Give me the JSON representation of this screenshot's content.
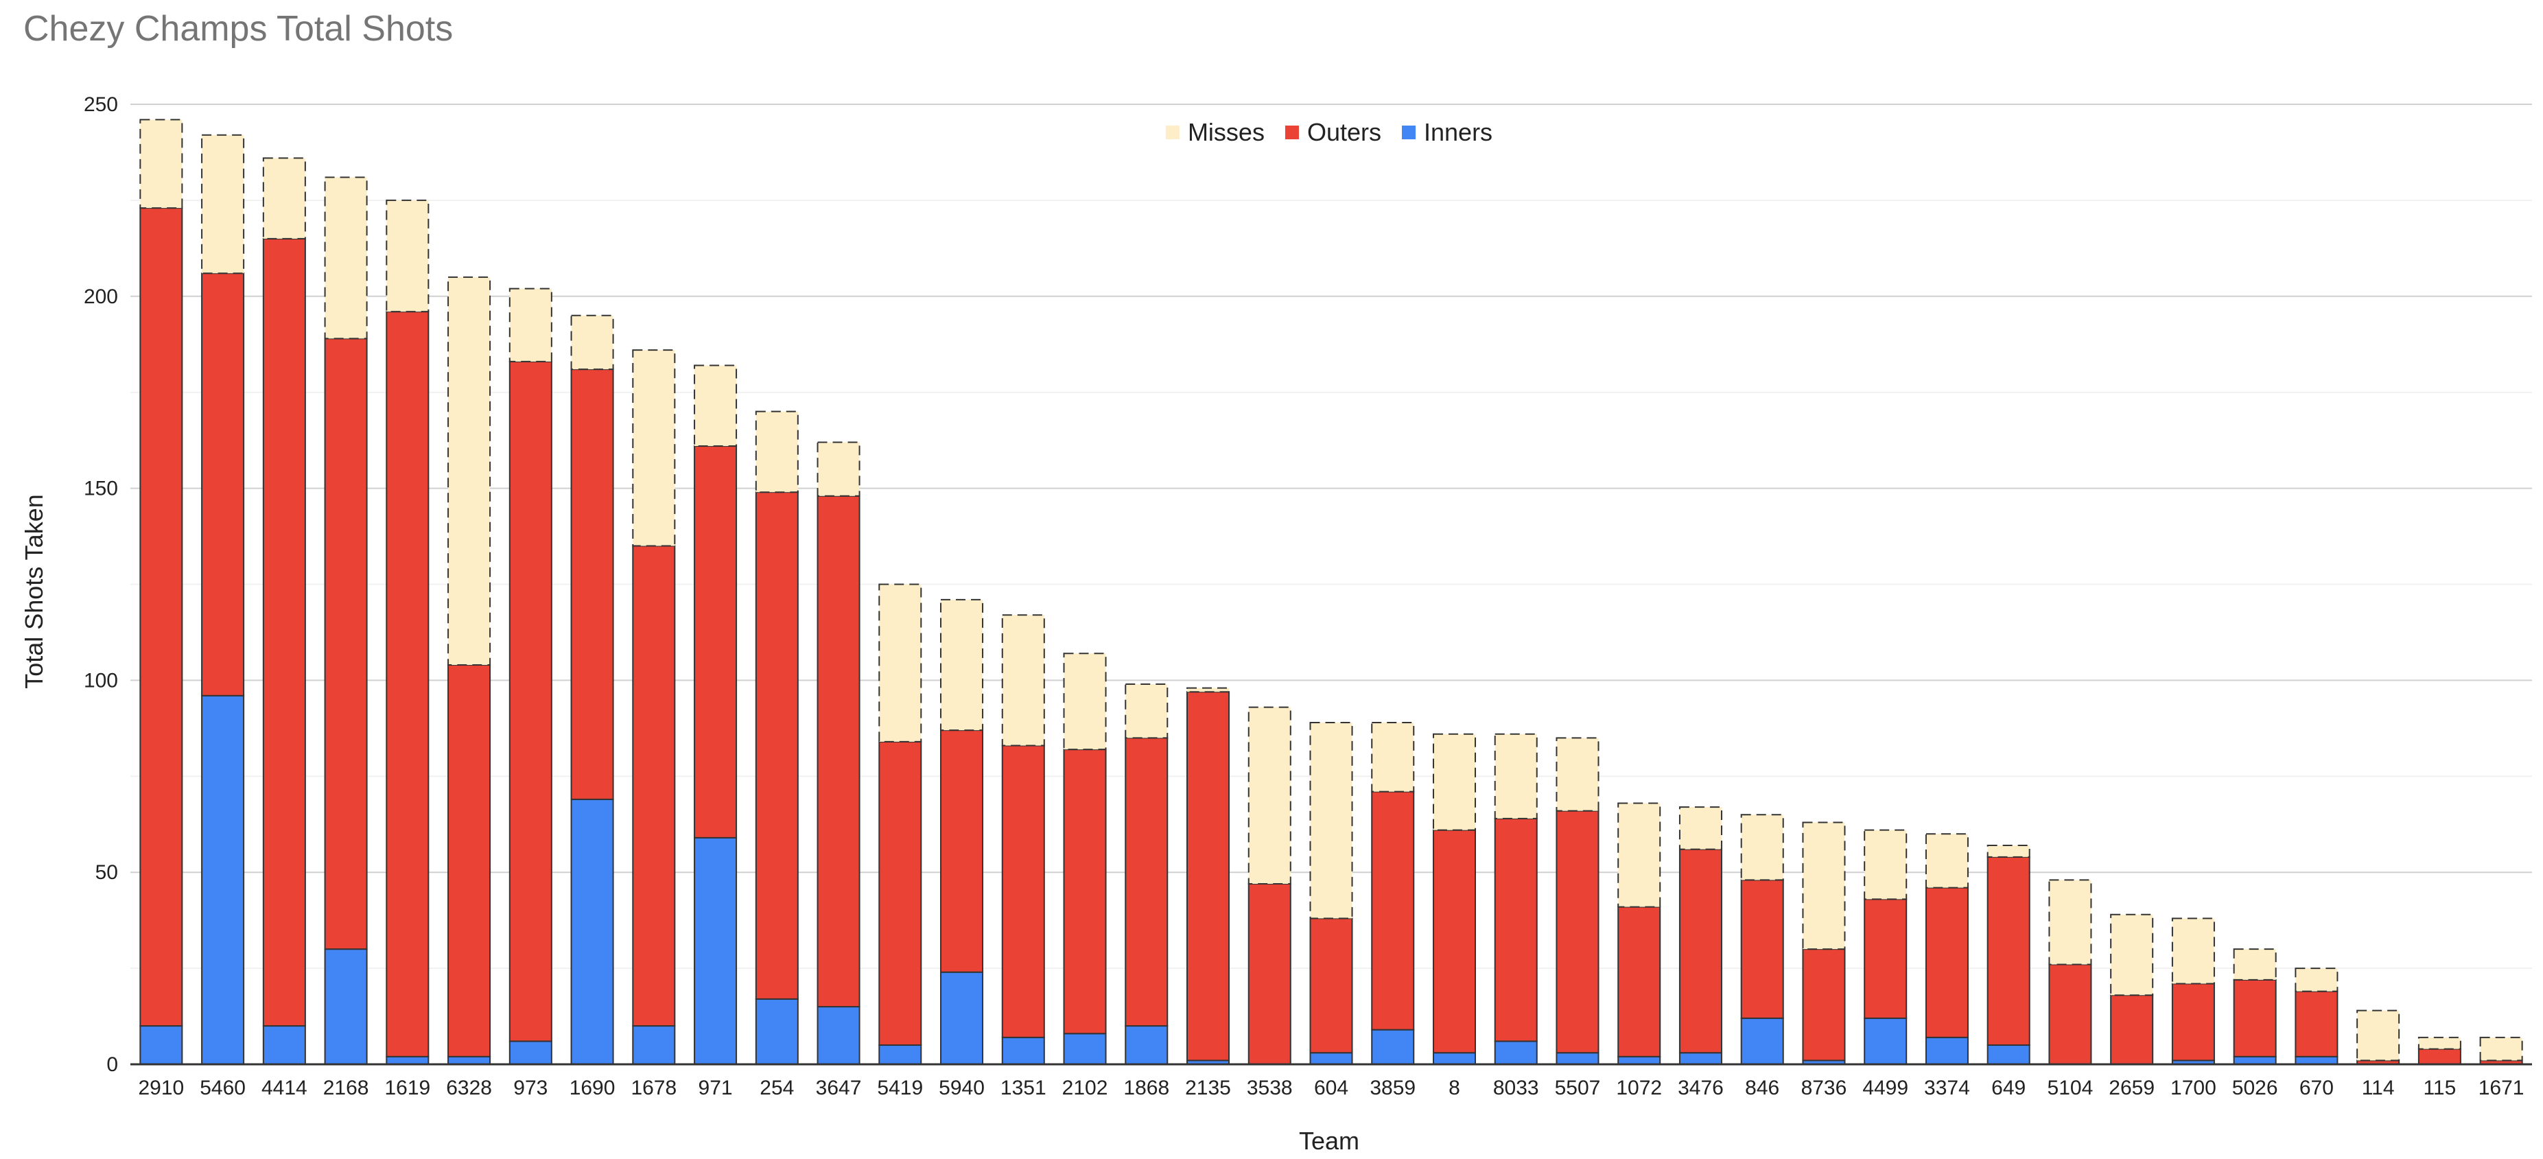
{
  "chart_data": {
    "type": "bar",
    "stacked": true,
    "title": "Chezy Champs Total Shots",
    "xlabel": "Team",
    "ylabel": "Total Shots Taken",
    "ylim": [
      0,
      250
    ],
    "yticks": [
      0,
      50,
      100,
      150,
      200,
      250
    ],
    "grid": true,
    "legend_position": "top",
    "categories": [
      "2910",
      "5460",
      "4414",
      "2168",
      "1619",
      "6328",
      "973",
      "1690",
      "1678",
      "971",
      "254",
      "3647",
      "5419",
      "5940",
      "1351",
      "2102",
      "1868",
      "2135",
      "3538",
      "604",
      "3859",
      "8",
      "8033",
      "5507",
      "1072",
      "3476",
      "846",
      "8736",
      "4499",
      "3374",
      "649",
      "5104",
      "2659",
      "1700",
      "5026",
      "670",
      "114",
      "115",
      "1671"
    ],
    "series": [
      {
        "name": "Inners",
        "color": "#4285f4",
        "dashed": false,
        "values": [
          10,
          96,
          10,
          30,
          2,
          2,
          6,
          69,
          10,
          59,
          17,
          15,
          5,
          24,
          7,
          8,
          10,
          1,
          0,
          3,
          9,
          3,
          6,
          3,
          2,
          3,
          12,
          1,
          12,
          7,
          5,
          0,
          0,
          1,
          2,
          2,
          0,
          0,
          0
        ]
      },
      {
        "name": "Outers",
        "color": "#ea4335",
        "dashed": false,
        "values": [
          213,
          110,
          205,
          159,
          194,
          102,
          177,
          112,
          125,
          102,
          132,
          133,
          79,
          63,
          76,
          74,
          75,
          96,
          47,
          35,
          62,
          58,
          58,
          63,
          39,
          53,
          36,
          29,
          31,
          39,
          49,
          26,
          18,
          20,
          20,
          17,
          1,
          4,
          1
        ]
      },
      {
        "name": "Misses",
        "color": "#fdeec8",
        "dashed": true,
        "values": [
          23,
          36,
          21,
          42,
          29,
          101,
          19,
          14,
          51,
          21,
          21,
          14,
          41,
          34,
          34,
          25,
          14,
          1,
          46,
          51,
          18,
          25,
          22,
          19,
          27,
          11,
          17,
          33,
          18,
          14,
          3,
          22,
          21,
          17,
          8,
          6,
          13,
          3,
          6
        ]
      }
    ],
    "legend_order": [
      "Misses",
      "Outers",
      "Inners"
    ]
  }
}
